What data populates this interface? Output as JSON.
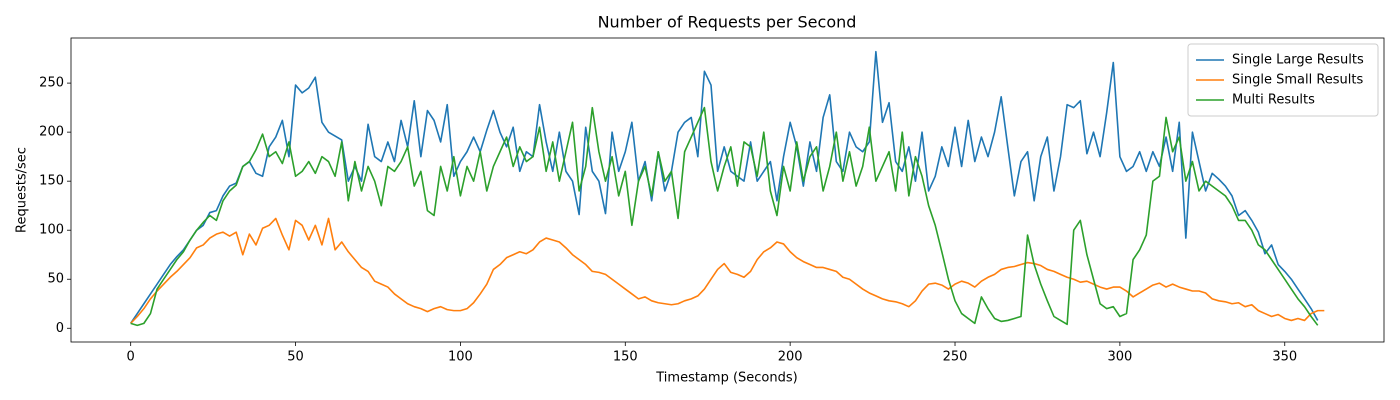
{
  "chart_data": {
    "type": "line",
    "title": "Number of Requests per Second",
    "xlabel": "Timestamp (Seconds)",
    "ylabel": "Requests/sec",
    "x": [
      0,
      2,
      4,
      6,
      8,
      10,
      12,
      14,
      16,
      18,
      20,
      22,
      24,
      26,
      28,
      30,
      32,
      34,
      36,
      38,
      40,
      42,
      44,
      46,
      48,
      50,
      52,
      54,
      56,
      58,
      60,
      62,
      64,
      66,
      68,
      70,
      72,
      74,
      76,
      78,
      80,
      82,
      84,
      86,
      88,
      90,
      92,
      94,
      96,
      98,
      100,
      102,
      104,
      106,
      108,
      110,
      112,
      114,
      116,
      118,
      120,
      122,
      124,
      126,
      128,
      130,
      132,
      134,
      136,
      138,
      140,
      142,
      144,
      146,
      148,
      150,
      152,
      154,
      156,
      158,
      160,
      162,
      164,
      166,
      168,
      170,
      172,
      174,
      176,
      178,
      180,
      182,
      184,
      186,
      188,
      190,
      192,
      194,
      196,
      198,
      200,
      202,
      204,
      206,
      208,
      210,
      212,
      214,
      216,
      218,
      220,
      222,
      224,
      226,
      228,
      230,
      232,
      234,
      236,
      238,
      240,
      242,
      244,
      246,
      248,
      250,
      252,
      254,
      256,
      258,
      260,
      262,
      264,
      266,
      268,
      270,
      272,
      274,
      276,
      278,
      280,
      282,
      284,
      286,
      288,
      290,
      292,
      294,
      296,
      298,
      300,
      302,
      304,
      306,
      308,
      310,
      312,
      314,
      316,
      318,
      320,
      322,
      324,
      326,
      328,
      330,
      332,
      334,
      336,
      338,
      340,
      342,
      344,
      346,
      348,
      350,
      352,
      354,
      356,
      358,
      360,
      362
    ],
    "series": [
      {
        "name": "Single Large Results",
        "color": "#1f77b4",
        "values": [
          5,
          15,
          25,
          35,
          45,
          55,
          65,
          73,
          80,
          90,
          100,
          105,
          118,
          120,
          135,
          145,
          148,
          165,
          170,
          158,
          155,
          185,
          195,
          212,
          175,
          248,
          240,
          245,
          256,
          210,
          200,
          196,
          192,
          150,
          165,
          150,
          208,
          175,
          170,
          190,
          170,
          212,
          185,
          232,
          175,
          222,
          212,
          190,
          228,
          155,
          170,
          180,
          195,
          180,
          202,
          222,
          200,
          185,
          205,
          160,
          180,
          175,
          228,
          190,
          160,
          200,
          160,
          150,
          116,
          205,
          160,
          150,
          117,
          200,
          160,
          180,
          210,
          150,
          170,
          130,
          180,
          140,
          160,
          200,
          210,
          215,
          175,
          262,
          248,
          160,
          185,
          160,
          155,
          150,
          190,
          150,
          160,
          170,
          130,
          175,
          210,
          185,
          145,
          190,
          160,
          215,
          238,
          170,
          160,
          200,
          185,
          180,
          190,
          282,
          210,
          230,
          170,
          160,
          185,
          150,
          200,
          140,
          155,
          185,
          165,
          205,
          165,
          212,
          170,
          195,
          175,
          200,
          236,
          185,
          135,
          170,
          180,
          130,
          175,
          195,
          140,
          175,
          228,
          225,
          232,
          178,
          200,
          175,
          220,
          271,
          175,
          160,
          165,
          180,
          160,
          180,
          165,
          195,
          160,
          210,
          92,
          200,
          170,
          140,
          158,
          152,
          145,
          135,
          115,
          120,
          110,
          98,
          76,
          85,
          65,
          58,
          50,
          40,
          30,
          20,
          8,
          null
        ]
      },
      {
        "name": "Single Small Results",
        "color": "#ff7f0e",
        "values": [
          5,
          12,
          20,
          30,
          38,
          45,
          52,
          58,
          65,
          72,
          82,
          85,
          92,
          96,
          98,
          94,
          98,
          75,
          96,
          85,
          102,
          105,
          112,
          95,
          80,
          110,
          105,
          90,
          105,
          85,
          112,
          80,
          88,
          78,
          70,
          62,
          58,
          48,
          45,
          42,
          35,
          30,
          25,
          22,
          20,
          17,
          20,
          22,
          19,
          18,
          18,
          20,
          26,
          35,
          45,
          60,
          65,
          72,
          75,
          78,
          76,
          80,
          88,
          92,
          90,
          88,
          82,
          75,
          70,
          65,
          58,
          57,
          55,
          50,
          45,
          40,
          35,
          30,
          32,
          28,
          26,
          25,
          24,
          25,
          28,
          30,
          33,
          40,
          50,
          60,
          66,
          57,
          55,
          52,
          58,
          70,
          78,
          82,
          88,
          86,
          78,
          72,
          68,
          65,
          62,
          62,
          60,
          58,
          52,
          50,
          45,
          40,
          36,
          33,
          30,
          28,
          27,
          25,
          22,
          28,
          38,
          45,
          46,
          44,
          40,
          45,
          48,
          46,
          42,
          48,
          52,
          55,
          60,
          62,
          63,
          65,
          67,
          66,
          64,
          60,
          58,
          55,
          52,
          50,
          47,
          48,
          45,
          42,
          40,
          42,
          42,
          38,
          32,
          36,
          40,
          44,
          46,
          42,
          45,
          42,
          40,
          38,
          38,
          36,
          30,
          28,
          27,
          25,
          26,
          22,
          24,
          18,
          15,
          12,
          14,
          10,
          8,
          10,
          8,
          15,
          18,
          18
        ]
      },
      {
        "name": "Multi Results",
        "color": "#2ca02c",
        "values": [
          5,
          3,
          5,
          15,
          40,
          50,
          60,
          70,
          78,
          90,
          100,
          108,
          115,
          110,
          130,
          140,
          146,
          165,
          170,
          182,
          198,
          175,
          180,
          168,
          190,
          155,
          160,
          170,
          158,
          175,
          170,
          155,
          190,
          130,
          170,
          140,
          165,
          150,
          125,
          165,
          160,
          170,
          185,
          145,
          160,
          120,
          115,
          165,
          140,
          175,
          135,
          165,
          150,
          180,
          140,
          165,
          180,
          195,
          165,
          185,
          170,
          175,
          205,
          160,
          190,
          150,
          180,
          210,
          140,
          165,
          225,
          180,
          150,
          175,
          135,
          160,
          105,
          150,
          165,
          135,
          180,
          150,
          160,
          112,
          180,
          195,
          210,
          225,
          170,
          140,
          165,
          185,
          145,
          190,
          185,
          155,
          200,
          140,
          115,
          165,
          140,
          190,
          150,
          175,
          185,
          140,
          165,
          200,
          150,
          180,
          145,
          165,
          205,
          150,
          165,
          180,
          140,
          200,
          135,
          175,
          155,
          125,
          105,
          78,
          50,
          28,
          15,
          10,
          5,
          32,
          20,
          10,
          7,
          8,
          10,
          12,
          95,
          65,
          45,
          28,
          12,
          8,
          4,
          100,
          110,
          75,
          50,
          25,
          20,
          22,
          12,
          15,
          70,
          80,
          95,
          150,
          155,
          215,
          180,
          195,
          150,
          170,
          140,
          150,
          145,
          140,
          135,
          125,
          110,
          110,
          100,
          85,
          80,
          70,
          60,
          50,
          40,
          30,
          22,
          12,
          3,
          null
        ]
      }
    ],
    "xlim": [
      -18.1,
      380.1
    ],
    "ylim": [
      -14,
      296
    ],
    "xticks": [
      0,
      50,
      100,
      150,
      200,
      250,
      300,
      350
    ],
    "yticks": [
      0,
      50,
      100,
      150,
      200,
      250
    ],
    "legend": "upper right"
  }
}
